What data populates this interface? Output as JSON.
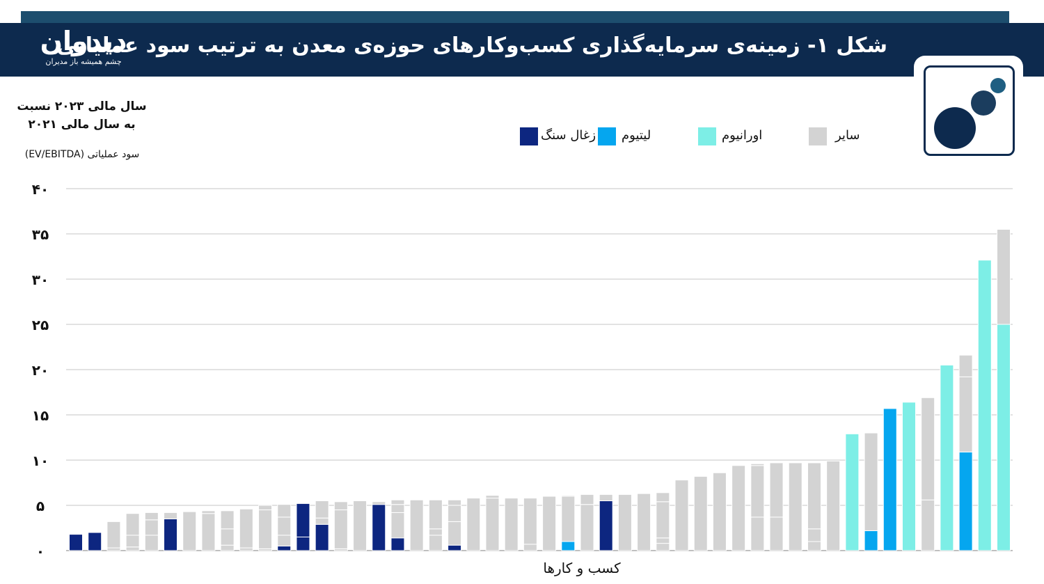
{
  "header": {
    "brand_name": "دیدوان",
    "brand_tagline": "چشم همیشه باز مدیران",
    "title": "شکل ۱- زمینه‌ی سرمایه‌گذاری کسب‌وکارهای حوزه‌ی معدن به ترتیب سود عملیاتی"
  },
  "colors": {
    "header_bg": "#0d2a4e",
    "coal": "#0d2680",
    "lithium": "#05a6ef",
    "uranium": "#7deee6",
    "other": "#d3d3d3",
    "grid": "#d9d9d9"
  },
  "chart_data": {
    "type": "bar",
    "stacked": true,
    "y_title_line1": "سال مالی ۲۰۲۳ نسبت",
    "y_title_line2": "به سال مالی ۲۰۲۱",
    "y_subtitle": "سود عملیاتی (EV/EBITDA)",
    "xlabel": "کسب و کارها",
    "ylim": [
      0,
      40
    ],
    "ytick_labels": [
      "۰",
      "۵",
      "۱۰",
      "۱۵",
      "۲۰",
      "۲۵",
      "۳۰",
      "۳۵",
      "۴۰"
    ],
    "legend_position": "top",
    "legend": [
      {
        "key": "coal",
        "label": "زغال سنگ"
      },
      {
        "key": "lithium",
        "label": "لیتیوم"
      },
      {
        "key": "uranium",
        "label": "اورانیوم"
      },
      {
        "key": "other",
        "label": "سایر"
      }
    ],
    "bars": [
      {
        "segments": [
          {
            "key": "coal",
            "value": 1.8
          }
        ]
      },
      {
        "segments": [
          {
            "key": "coal",
            "value": 2.0
          }
        ]
      },
      {
        "segments": [
          {
            "key": "other",
            "value": 0.3
          },
          {
            "key": "other",
            "value": 2.9
          }
        ]
      },
      {
        "segments": [
          {
            "key": "other",
            "value": 0.4
          },
          {
            "key": "other",
            "value": 1.3
          },
          {
            "key": "other",
            "value": 2.4
          }
        ]
      },
      {
        "segments": [
          {
            "key": "other",
            "value": 1.7
          },
          {
            "key": "other",
            "value": 1.7
          },
          {
            "key": "other",
            "value": 0.8
          }
        ]
      },
      {
        "segments": [
          {
            "key": "coal",
            "value": 3.5
          },
          {
            "key": "other",
            "value": 0.7
          }
        ]
      },
      {
        "segments": [
          {
            "key": "other",
            "value": 4.3
          }
        ]
      },
      {
        "segments": [
          {
            "key": "other",
            "value": 4.1
          },
          {
            "key": "other",
            "value": 0.3
          }
        ]
      },
      {
        "segments": [
          {
            "key": "other",
            "value": 0.6
          },
          {
            "key": "other",
            "value": 1.8
          },
          {
            "key": "other",
            "value": 2.0
          }
        ]
      },
      {
        "segments": [
          {
            "key": "other",
            "value": 0.3
          },
          {
            "key": "other",
            "value": 4.3
          }
        ]
      },
      {
        "segments": [
          {
            "key": "other",
            "value": 0.2
          },
          {
            "key": "other",
            "value": 4.3
          },
          {
            "key": "other",
            "value": 0.5
          }
        ]
      },
      {
        "segments": [
          {
            "key": "coal",
            "value": 0.5
          },
          {
            "key": "other",
            "value": 1.2
          },
          {
            "key": "other",
            "value": 2.0
          },
          {
            "key": "other",
            "value": 1.4
          }
        ]
      },
      {
        "segments": [
          {
            "key": "coal",
            "value": 1.5
          },
          {
            "key": "coal",
            "value": 3.7
          }
        ]
      },
      {
        "segments": [
          {
            "key": "coal",
            "value": 2.9
          },
          {
            "key": "other",
            "value": 0.7
          },
          {
            "key": "other",
            "value": 1.9
          }
        ]
      },
      {
        "segments": [
          {
            "key": "other",
            "value": 0.2
          },
          {
            "key": "other",
            "value": 4.3
          },
          {
            "key": "other",
            "value": 0.9
          }
        ]
      },
      {
        "segments": [
          {
            "key": "other",
            "value": 5.5
          }
        ]
      },
      {
        "segments": [
          {
            "key": "coal",
            "value": 5.1
          },
          {
            "key": "other",
            "value": 0.3
          }
        ]
      },
      {
        "segments": [
          {
            "key": "coal",
            "value": 1.4
          },
          {
            "key": "other",
            "value": 2.8
          },
          {
            "key": "other",
            "value": 0.9
          },
          {
            "key": "other",
            "value": 0.5
          }
        ]
      },
      {
        "segments": [
          {
            "key": "other",
            "value": 5.6
          }
        ]
      },
      {
        "segments": [
          {
            "key": "other",
            "value": 1.7
          },
          {
            "key": "other",
            "value": 0.7
          },
          {
            "key": "other",
            "value": 3.2
          }
        ]
      },
      {
        "segments": [
          {
            "key": "coal",
            "value": 0.6
          },
          {
            "key": "other",
            "value": 2.6
          },
          {
            "key": "other",
            "value": 1.8
          },
          {
            "key": "other",
            "value": 0.6
          }
        ]
      },
      {
        "segments": [
          {
            "key": "other",
            "value": 5.8
          }
        ]
      },
      {
        "segments": [
          {
            "key": "other",
            "value": 5.8
          },
          {
            "key": "other",
            "value": 0.3
          }
        ]
      },
      {
        "segments": [
          {
            "key": "other",
            "value": 5.8
          }
        ]
      },
      {
        "segments": [
          {
            "key": "other",
            "value": 0.7
          },
          {
            "key": "other",
            "value": 5.1
          }
        ]
      },
      {
        "segments": [
          {
            "key": "other",
            "value": 6.0
          }
        ]
      },
      {
        "segments": [
          {
            "key": "lithium",
            "value": 1.0
          },
          {
            "key": "other",
            "value": 5.0
          },
          {
            "key": "other",
            "value": 0.1
          }
        ]
      },
      {
        "segments": [
          {
            "key": "other",
            "value": 5.1
          },
          {
            "key": "other",
            "value": 1.1
          }
        ]
      },
      {
        "segments": [
          {
            "key": "coal",
            "value": 5.5
          },
          {
            "key": "other",
            "value": 0.7
          }
        ]
      },
      {
        "segments": [
          {
            "key": "other",
            "value": 6.2
          }
        ]
      },
      {
        "segments": [
          {
            "key": "other",
            "value": 6.3
          }
        ]
      },
      {
        "segments": [
          {
            "key": "other",
            "value": 0.8
          },
          {
            "key": "other",
            "value": 0.6
          },
          {
            "key": "other",
            "value": 4.0
          },
          {
            "key": "other",
            "value": 1.0
          }
        ]
      },
      {
        "segments": [
          {
            "key": "other",
            "value": 7.8
          }
        ]
      },
      {
        "segments": [
          {
            "key": "other",
            "value": 8.2
          }
        ]
      },
      {
        "segments": [
          {
            "key": "other",
            "value": 8.6
          }
        ]
      },
      {
        "segments": [
          {
            "key": "other",
            "value": 9.4
          }
        ]
      },
      {
        "segments": [
          {
            "key": "other",
            "value": 3.7
          },
          {
            "key": "other",
            "value": 5.7
          },
          {
            "key": "other",
            "value": 0.2
          }
        ]
      },
      {
        "segments": [
          {
            "key": "other",
            "value": 3.7
          },
          {
            "key": "other",
            "value": 6.0
          }
        ]
      },
      {
        "segments": [
          {
            "key": "other",
            "value": 9.7
          }
        ]
      },
      {
        "segments": [
          {
            "key": "other",
            "value": 1.0
          },
          {
            "key": "other",
            "value": 1.4
          },
          {
            "key": "other",
            "value": 7.3
          }
        ]
      },
      {
        "segments": [
          {
            "key": "other",
            "value": 9.9
          }
        ]
      },
      {
        "segments": [
          {
            "key": "uranium",
            "value": 12.9
          }
        ]
      },
      {
        "segments": [
          {
            "key": "lithium",
            "value": 2.2
          },
          {
            "key": "other",
            "value": 10.8
          }
        ]
      },
      {
        "segments": [
          {
            "key": "lithium",
            "value": 15.7
          }
        ]
      },
      {
        "segments": [
          {
            "key": "uranium",
            "value": 16.4
          }
        ]
      },
      {
        "segments": [
          {
            "key": "other",
            "value": 5.6
          },
          {
            "key": "other",
            "value": 11.3
          }
        ]
      },
      {
        "segments": [
          {
            "key": "uranium",
            "value": 20.5
          }
        ]
      },
      {
        "segments": [
          {
            "key": "lithium",
            "value": 10.9
          },
          {
            "key": "other",
            "value": 8.3
          },
          {
            "key": "other",
            "value": 2.4
          }
        ]
      },
      {
        "segments": [
          {
            "key": "uranium",
            "value": 32.1
          }
        ]
      },
      {
        "segments": [
          {
            "key": "uranium",
            "value": 25.0
          },
          {
            "key": "other",
            "value": 10.5
          }
        ]
      }
    ]
  }
}
